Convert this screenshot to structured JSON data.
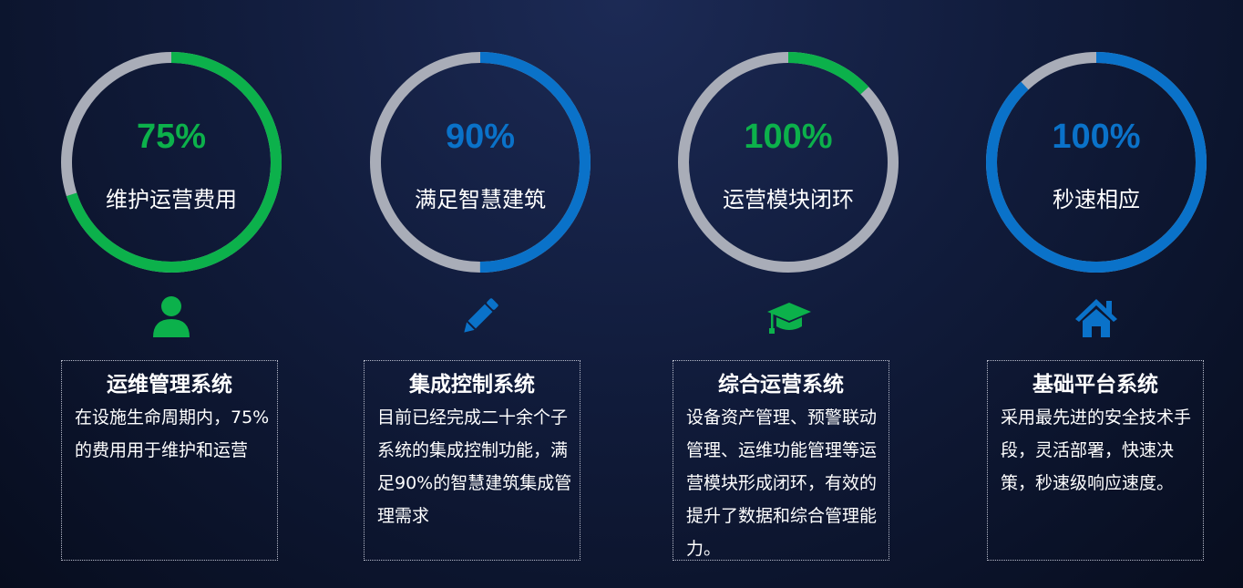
{
  "colors": {
    "green": "#0cb14b",
    "blue": "#0a72c9",
    "track": "#a9adb8"
  },
  "cards": [
    {
      "percent": "75%",
      "caption": "维护运营费用",
      "fill": 0.7,
      "color": "green",
      "icon": "user-icon",
      "title": "运维管理系统",
      "body": "在设施生命周期内，75%的费用用于维护和运营"
    },
    {
      "percent": "90%",
      "caption": "满足智慧建筑",
      "fill": 0.5,
      "color": "blue",
      "icon": "pencil-icon",
      "title": "集成控制系统",
      "body": "目前已经完成二十余个子系统的集成控制功能，满足90%的智慧建筑集成管理需求"
    },
    {
      "percent": "100%",
      "caption": "运营模块闭环",
      "fill": 0.13,
      "color": "green",
      "icon": "graduation-cap-icon",
      "title": "综合运营系统",
      "body": "设备资产管理、预警联动管理、运维功能管理等运营模块形成闭环，有效的提升了数据和综合管理能力。"
    },
    {
      "percent": "100%",
      "caption": "秒速相应",
      "fill": 0.88,
      "color": "blue",
      "icon": "home-icon",
      "title": "基础平台系统",
      "body": "采用最先进的安全技术手段，灵活部署，快速决策，秒速级响应速度。"
    }
  ]
}
